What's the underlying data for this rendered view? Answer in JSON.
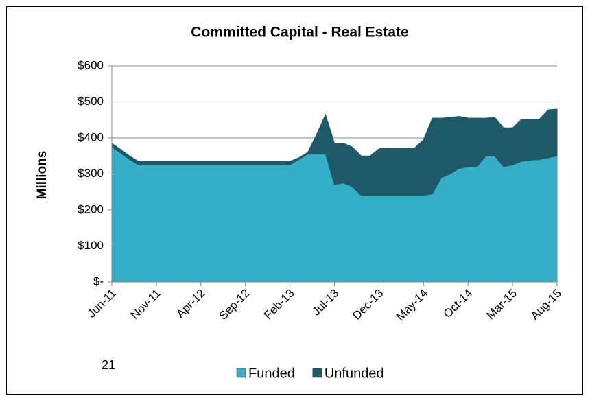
{
  "chart_data": {
    "type": "stacked_area",
    "title": "Committed Capital - Real Estate",
    "y_label": "Millions",
    "page_number": "21",
    "categories": [
      "Jun-11",
      null,
      null,
      null,
      null,
      "Nov-11",
      null,
      null,
      null,
      null,
      "Apr-12",
      null,
      null,
      null,
      null,
      "Sep-12",
      null,
      null,
      null,
      null,
      "Feb-13",
      null,
      null,
      null,
      null,
      "Jul-13",
      null,
      null,
      null,
      null,
      "Dec-13",
      null,
      null,
      null,
      null,
      "May-14",
      null,
      null,
      null,
      null,
      "Oct-14",
      null,
      null,
      null,
      null,
      "Mar-15",
      null,
      null,
      null,
      null,
      "Aug-15"
    ],
    "series": [
      {
        "name": "Funded",
        "color": "#35aec8",
        "values": [
          375,
          358,
          340,
          325,
          325,
          325,
          325,
          325,
          325,
          325,
          325,
          325,
          325,
          325,
          325,
          325,
          325,
          325,
          325,
          325,
          325,
          340,
          355,
          355,
          355,
          270,
          275,
          265,
          240,
          240,
          240,
          240,
          240,
          240,
          240,
          240,
          245,
          290,
          300,
          315,
          320,
          320,
          350,
          350,
          320,
          325,
          335,
          338,
          340,
          345,
          350
        ]
      },
      {
        "name": "Unfunded",
        "color": "#1e5968",
        "values": [
          10,
          10,
          10,
          10,
          10,
          10,
          10,
          10,
          10,
          10,
          10,
          10,
          10,
          10,
          10,
          10,
          10,
          10,
          10,
          10,
          10,
          5,
          5,
          55,
          110,
          115,
          110,
          110,
          110,
          110,
          130,
          132,
          132,
          132,
          132,
          155,
          210,
          165,
          157,
          145,
          135,
          135,
          105,
          107,
          108,
          103,
          117,
          114,
          112,
          133,
          130
        ]
      }
    ],
    "ylim": [
      0,
      600
    ],
    "yticks": [
      {
        "value": 0,
        "label": "$-"
      },
      {
        "value": 100,
        "label": "$100"
      },
      {
        "value": 200,
        "label": "$200"
      },
      {
        "value": 300,
        "label": "$300"
      },
      {
        "value": 400,
        "label": "$400"
      },
      {
        "value": 500,
        "label": "$500"
      },
      {
        "value": 600,
        "label": "$600"
      }
    ],
    "grid": true,
    "legend": "bottom"
  }
}
